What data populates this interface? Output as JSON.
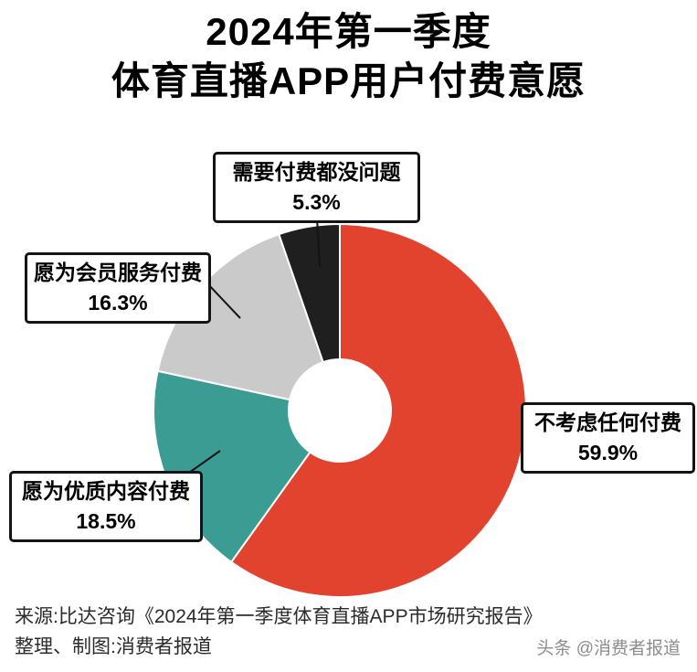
{
  "title": {
    "line1": "2024年第一季度",
    "line2": "体育直播APP用户付费意愿"
  },
  "chart_data": {
    "type": "pie",
    "donut": true,
    "title": "2024年第一季度体育直播APP用户付费意愿",
    "categories": [
      "不考虑任何付费",
      "愿为优质内容付费",
      "愿为会员服务付费",
      "需要付费都没问题"
    ],
    "values": [
      59.9,
      18.5,
      16.3,
      5.3
    ],
    "unit": "%",
    "colors": [
      "#E2432F",
      "#3B9C94",
      "#CACACA",
      "#1F1F1F"
    ],
    "start_angle_deg": 0,
    "direction": "clockwise",
    "legend_position": "none",
    "label_style": "callout-boxes"
  },
  "callouts": [
    {
      "label": "需要付费都没问题",
      "value": "5.3%"
    },
    {
      "label": "愿为会员服务付费",
      "value": "16.3%"
    },
    {
      "label": "不考虑任何付费",
      "value": "59.9%"
    },
    {
      "label": "愿为优质内容付费",
      "value": "18.5%"
    }
  ],
  "source": {
    "line1": "来源:比达咨询《2024年第一季度体育直播APP市场研究报告》",
    "line2": "整理、制图:消费者报道"
  },
  "watermark": "头条 @消费者报道"
}
